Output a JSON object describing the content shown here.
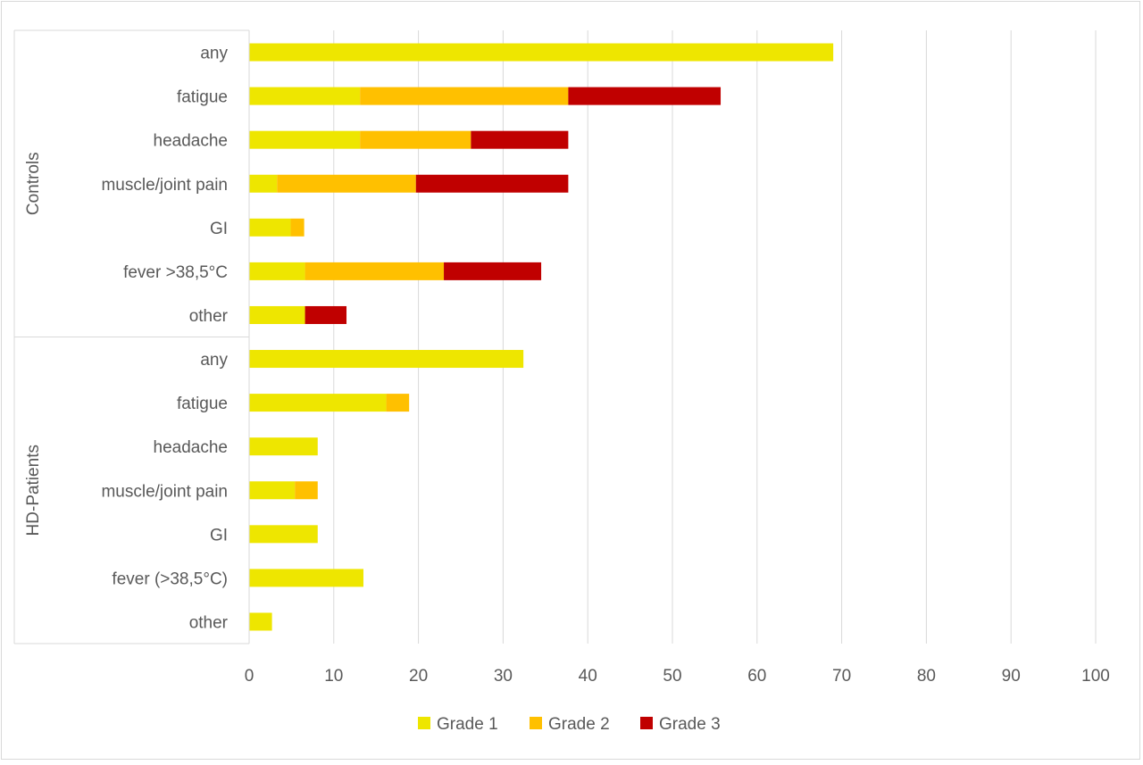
{
  "chart_data": {
    "type": "bar",
    "orientation": "horizontal",
    "stacked": true,
    "title": "",
    "xlabel": "",
    "ylabel": "",
    "xlim": [
      0,
      100
    ],
    "xticks": [
      0,
      10,
      20,
      30,
      40,
      50,
      60,
      70,
      80,
      90,
      100
    ],
    "grid": "vertical",
    "legend_position": "bottom",
    "groups": [
      {
        "name": "Controls",
        "categories": [
          "any",
          "fatigue",
          "headache",
          "muscle/joint pain",
          "GI",
          "fever >38,5°C",
          "other"
        ]
      },
      {
        "name": "HD-Patients",
        "categories": [
          "any",
          "fatigue",
          "headache",
          "muscle/joint pain",
          "GI",
          "fever (>38,5°C)",
          "other"
        ]
      }
    ],
    "series": [
      {
        "name": "Grade 1",
        "color": "#EEE600",
        "values": [
          69.0,
          13.1,
          13.1,
          3.3,
          4.9,
          6.6,
          6.6,
          32.4,
          16.2,
          8.1,
          5.4,
          8.1,
          13.5,
          2.7
        ]
      },
      {
        "name": "Grade 2",
        "color": "#FFC000",
        "values": [
          0,
          24.6,
          13.1,
          16.4,
          1.6,
          16.4,
          0,
          0,
          2.7,
          0,
          2.7,
          0,
          0,
          0
        ]
      },
      {
        "name": "Grade 3",
        "color": "#C00000",
        "values": [
          0,
          18.0,
          11.5,
          18.0,
          0,
          11.5,
          4.9,
          0,
          0,
          0,
          0,
          0,
          0,
          0
        ]
      }
    ]
  }
}
